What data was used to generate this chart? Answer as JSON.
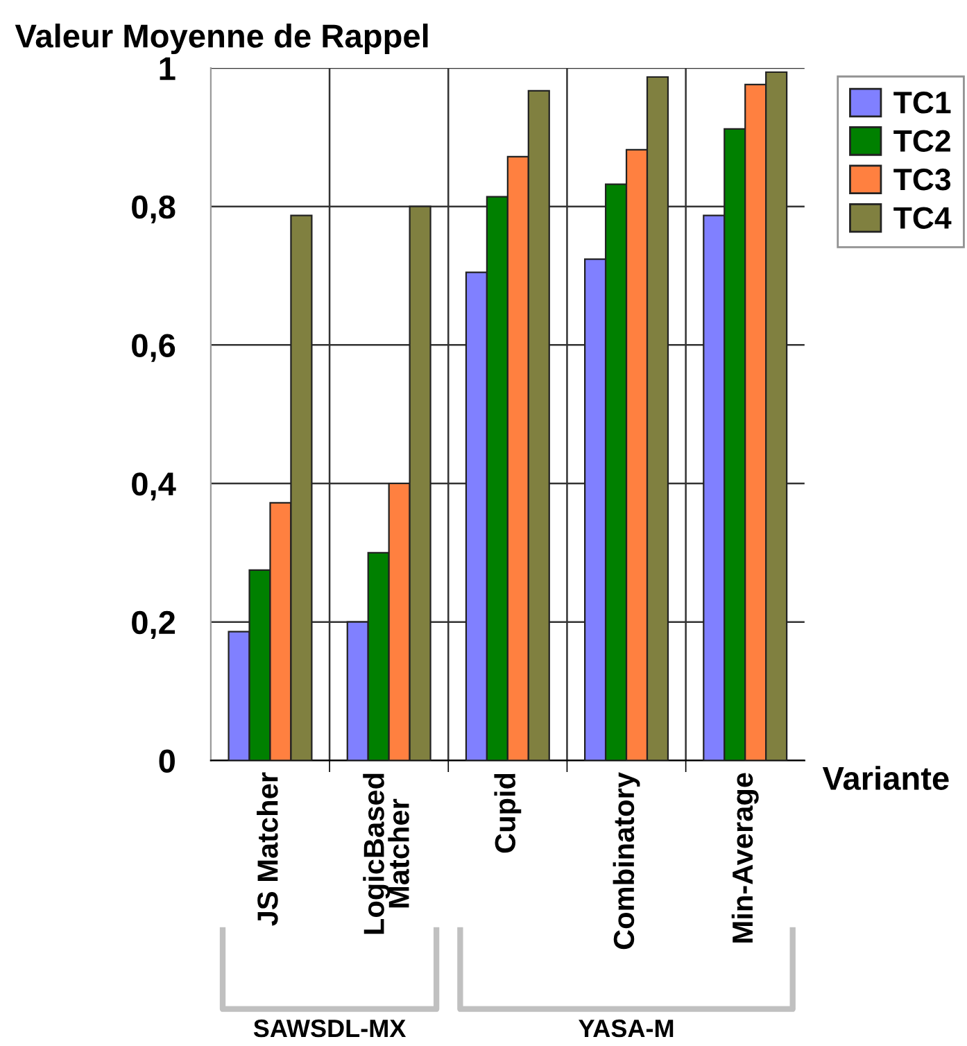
{
  "chart_data": {
    "type": "bar",
    "ylabel": "Valeur Moyenne de Rappel",
    "xlabel": "Variante",
    "categories": [
      "JS Matcher",
      "LogicBased\nMatcher",
      "Cupid",
      "Combinatory",
      "Min-Average"
    ],
    "series": [
      {
        "name": "TC1",
        "color": "#8080ff",
        "values": [
          0.186,
          0.2,
          0.705,
          0.724,
          0.787
        ]
      },
      {
        "name": "TC2",
        "color": "#008000",
        "values": [
          0.275,
          0.3,
          0.814,
          0.832,
          0.912
        ]
      },
      {
        "name": "TC3",
        "color": "#ff8040",
        "values": [
          0.372,
          0.4,
          0.872,
          0.882,
          0.976
        ]
      },
      {
        "name": "TC4",
        "color": "#808040",
        "values": [
          0.787,
          0.8,
          0.967,
          0.987,
          0.994
        ]
      }
    ],
    "ylim": [
      0,
      1
    ],
    "yticks": [
      0,
      {
        "value": 0.2,
        "label": "0,2"
      },
      {
        "value": 0.4,
        "label": "0,4"
      },
      {
        "value": 0.6,
        "label": "0,6"
      },
      {
        "value": 0.8,
        "label": "0,8"
      },
      1
    ],
    "grid": true,
    "legend": "top right",
    "annotations": [
      "SAWSDL-MX",
      "YASA-M"
    ]
  }
}
